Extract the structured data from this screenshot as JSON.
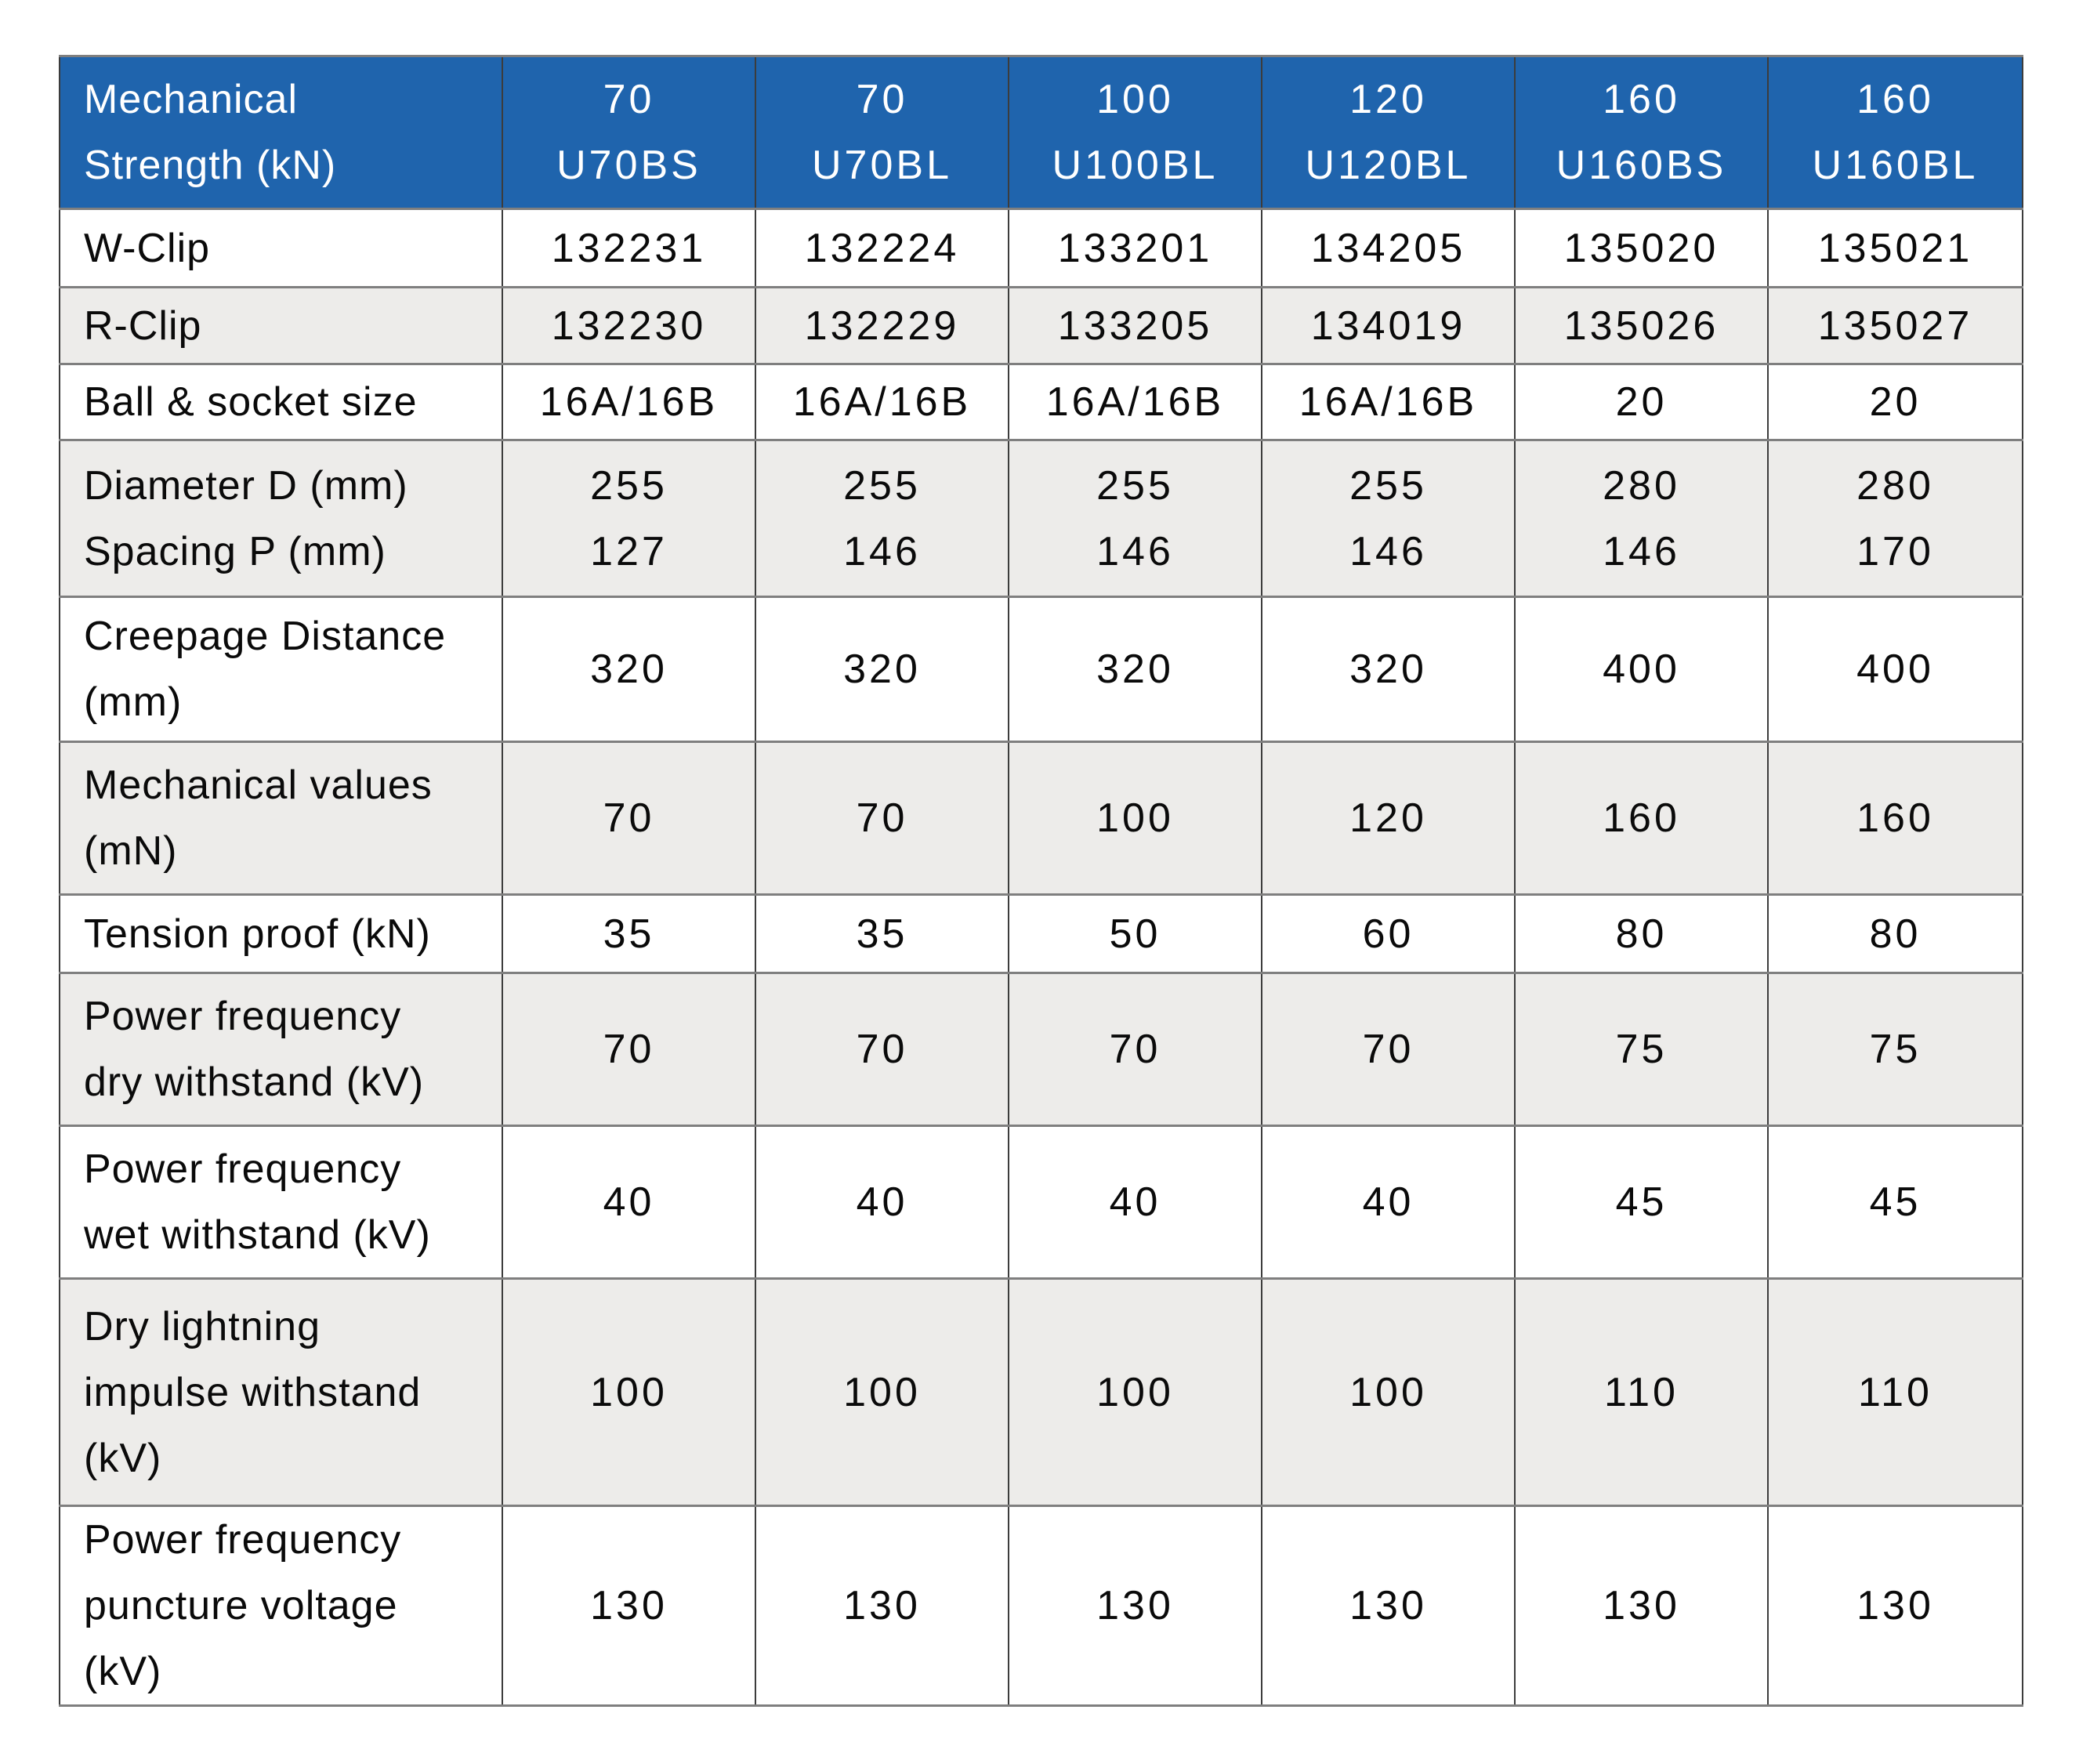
{
  "table": {
    "header": {
      "label_lines": [
        "Mechanical",
        "Strength (kN)"
      ],
      "columns": [
        {
          "lines": [
            "70",
            "U70BS"
          ]
        },
        {
          "lines": [
            "70",
            "U70BL"
          ]
        },
        {
          "lines": [
            "100",
            "U100BL"
          ]
        },
        {
          "lines": [
            "120",
            "U120BL"
          ]
        },
        {
          "lines": [
            "160",
            "U160BS"
          ]
        },
        {
          "lines": [
            "160",
            "U160BL"
          ]
        }
      ]
    },
    "rows": [
      {
        "name": "w-clip",
        "label_lines": [
          "W-Clip"
        ],
        "values": [
          [
            "132231"
          ],
          [
            "132224"
          ],
          [
            "133201"
          ],
          [
            "134205"
          ],
          [
            "135020"
          ],
          [
            "135021"
          ]
        ],
        "shaded": false
      },
      {
        "name": "r-clip",
        "label_lines": [
          "R-Clip"
        ],
        "values": [
          [
            "132230"
          ],
          [
            "132229"
          ],
          [
            "133205"
          ],
          [
            "134019"
          ],
          [
            "135026"
          ],
          [
            "135027"
          ]
        ],
        "shaded": true
      },
      {
        "name": "ball-socket-size",
        "label_lines": [
          "Ball & socket size"
        ],
        "values": [
          [
            "16A/16B"
          ],
          [
            "16A/16B"
          ],
          [
            "16A/16B"
          ],
          [
            "16A/16B"
          ],
          [
            "20"
          ],
          [
            "20"
          ]
        ],
        "shaded": false
      },
      {
        "name": "diameter-spacing",
        "label_lines": [
          "Diameter D (mm)",
          "Spacing P (mm)"
        ],
        "values": [
          [
            "255",
            "127"
          ],
          [
            "255",
            "146"
          ],
          [
            "255",
            "146"
          ],
          [
            "255",
            "146"
          ],
          [
            "280",
            "146"
          ],
          [
            "280",
            "170"
          ]
        ],
        "shaded": true
      },
      {
        "name": "creepage-distance",
        "label_lines": [
          "Creepage Distance",
          "(mm)"
        ],
        "values": [
          [
            "320"
          ],
          [
            "320"
          ],
          [
            "320"
          ],
          [
            "320"
          ],
          [
            "400"
          ],
          [
            "400"
          ]
        ],
        "shaded": false
      },
      {
        "name": "mechanical-values",
        "label_lines": [
          "Mechanical values",
          "(mN)"
        ],
        "values": [
          [
            "70"
          ],
          [
            "70"
          ],
          [
            "100"
          ],
          [
            "120"
          ],
          [
            "160"
          ],
          [
            "160"
          ]
        ],
        "shaded": true
      },
      {
        "name": "tension-proof",
        "label_lines": [
          "Tension proof (kN)"
        ],
        "values": [
          [
            "35"
          ],
          [
            "35"
          ],
          [
            "50"
          ],
          [
            "60"
          ],
          [
            "80"
          ],
          [
            "80"
          ]
        ],
        "shaded": false
      },
      {
        "name": "power-frequency-dry-withstand",
        "label_lines": [
          "Power frequency",
          "dry withstand (kV)"
        ],
        "values": [
          [
            "70"
          ],
          [
            "70"
          ],
          [
            "70"
          ],
          [
            "70"
          ],
          [
            "75"
          ],
          [
            "75"
          ]
        ],
        "shaded": true
      },
      {
        "name": "power-frequency-wet-withstand",
        "label_lines": [
          "Power frequency",
          "wet withstand (kV)"
        ],
        "values": [
          [
            "40"
          ],
          [
            "40"
          ],
          [
            "40"
          ],
          [
            "40"
          ],
          [
            "45"
          ],
          [
            "45"
          ]
        ],
        "shaded": false
      },
      {
        "name": "dry-lightning-impulse-withstand",
        "label_lines": [
          "Dry lightning",
          "impulse withstand",
          "(kV)"
        ],
        "values": [
          [
            "100"
          ],
          [
            "100"
          ],
          [
            "100"
          ],
          [
            "100"
          ],
          [
            "110"
          ],
          [
            "110"
          ]
        ],
        "shaded": true
      },
      {
        "name": "power-frequency-puncture-voltage",
        "label_lines": [
          "Power frequency",
          "puncture voltage",
          "(kV)"
        ],
        "values": [
          [
            "130"
          ],
          [
            "130"
          ],
          [
            "130"
          ],
          [
            "130"
          ],
          [
            "130"
          ],
          [
            "130"
          ]
        ],
        "shaded": false
      }
    ]
  },
  "colors": {
    "header_bg": "#1f64ad",
    "header_text": "#ffffff",
    "row_bg": "#ffffff",
    "row_shaded_bg": "#edecea",
    "text": "#0a0a0a",
    "border_vertical": "#3c3c3c",
    "border_horizontal": "#7f7f7f"
  }
}
